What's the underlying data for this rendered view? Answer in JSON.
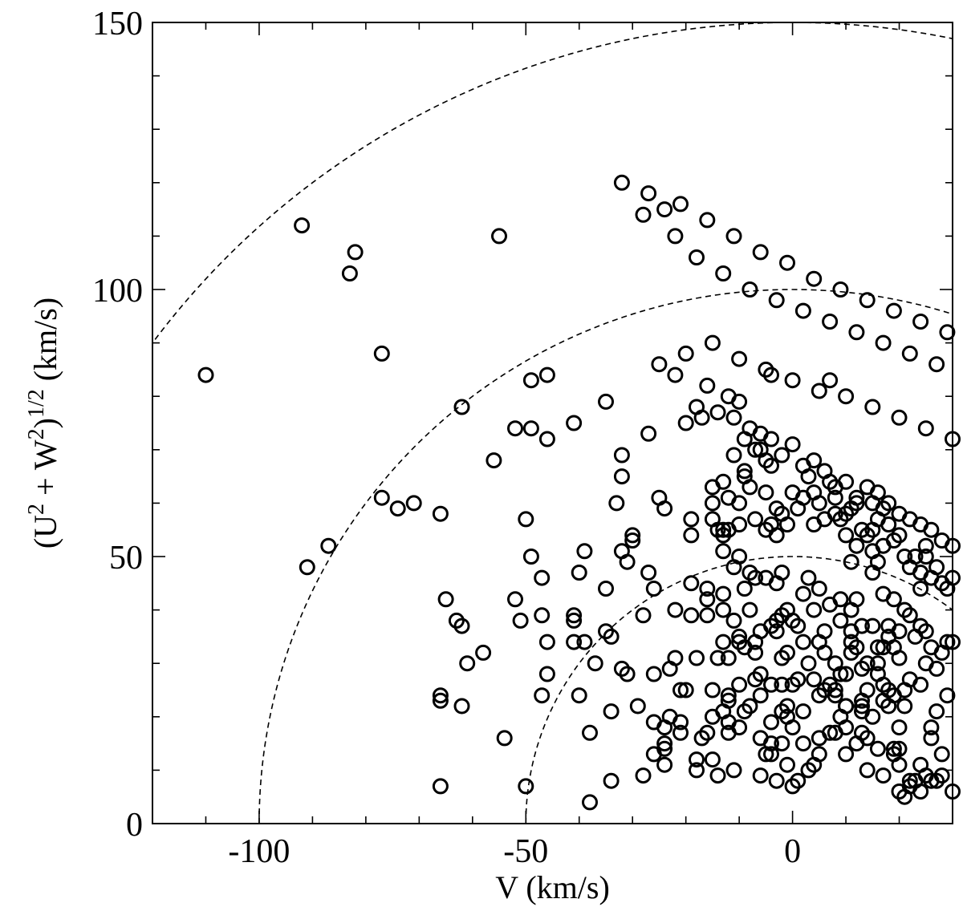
{
  "chart_data": {
    "type": "scatter",
    "xlabel": "V (km/s)",
    "ylabel": {
      "prefix": "(U",
      "sup1": "2",
      "mid": " + W",
      "sup2": "2",
      "close": ")",
      "sup3": "1/2",
      "suffix": " (km/s)"
    },
    "xlim": [
      -120,
      30
    ],
    "ylim": [
      0,
      150
    ],
    "xticks": [
      -100,
      -50,
      0
    ],
    "xtick_labels": [
      "-100",
      "-50",
      "0"
    ],
    "yticks": [
      0,
      50,
      100,
      150
    ],
    "ytick_labels": [
      "0",
      "50",
      "100",
      "150"
    ],
    "grid": false,
    "marker": "open-circle",
    "reference_circles": [
      50,
      100,
      150
    ],
    "points": [
      [
        -110,
        84
      ],
      [
        -92,
        112
      ],
      [
        -91,
        48
      ],
      [
        -87,
        52
      ],
      [
        -83,
        103
      ],
      [
        -82,
        107
      ],
      [
        -77,
        88
      ],
      [
        -77,
        61
      ],
      [
        -74,
        59
      ],
      [
        -71,
        60
      ],
      [
        -66,
        58
      ],
      [
        -66,
        24
      ],
      [
        -66,
        23
      ],
      [
        -66,
        7
      ],
      [
        -65,
        42
      ],
      [
        -63,
        38
      ],
      [
        -62,
        37
      ],
      [
        -62,
        22
      ],
      [
        -61,
        30
      ],
      [
        -62,
        78
      ],
      [
        -58,
        32
      ],
      [
        -56,
        68
      ],
      [
        -55,
        110
      ],
      [
        -54,
        16
      ],
      [
        -52,
        74
      ],
      [
        -52,
        42
      ],
      [
        -51,
        38
      ],
      [
        -50,
        57
      ],
      [
        -50,
        7
      ],
      [
        -49,
        83
      ],
      [
        -49,
        50
      ],
      [
        -49,
        74
      ],
      [
        -47,
        46
      ],
      [
        -47,
        39
      ],
      [
        -46,
        72
      ],
      [
        -46,
        84
      ],
      [
        -46,
        34
      ],
      [
        -46,
        28
      ],
      [
        -47,
        24
      ],
      [
        -41,
        75
      ],
      [
        -41,
        38
      ],
      [
        -41,
        39
      ],
      [
        -41,
        34
      ],
      [
        -40,
        24
      ],
      [
        -40,
        47
      ],
      [
        -39,
        51
      ],
      [
        -39,
        34
      ],
      [
        -38,
        17
      ],
      [
        -38,
        4
      ],
      [
        -37,
        30
      ],
      [
        -35,
        79
      ],
      [
        -35,
        44
      ],
      [
        -35,
        36
      ],
      [
        -34,
        35
      ],
      [
        -34,
        8
      ],
      [
        -34,
        21
      ],
      [
        -33,
        60
      ],
      [
        -32,
        51
      ],
      [
        -32,
        69
      ],
      [
        -32,
        65
      ],
      [
        -32,
        29
      ],
      [
        -31,
        28
      ],
      [
        -31,
        49
      ],
      [
        -30,
        53
      ],
      [
        -30,
        54
      ],
      [
        -29,
        22
      ],
      [
        -28,
        39
      ],
      [
        -28,
        9
      ],
      [
        -27,
        73
      ],
      [
        -27,
        47
      ],
      [
        -26,
        44
      ],
      [
        -26,
        28
      ],
      [
        -26,
        19
      ],
      [
        -26,
        13
      ],
      [
        -25,
        61
      ],
      [
        -24,
        59
      ],
      [
        -24,
        18
      ],
      [
        -23,
        20
      ],
      [
        -24,
        15
      ],
      [
        -24,
        14
      ],
      [
        -24,
        11
      ],
      [
        -23,
        29
      ],
      [
        -22,
        84
      ],
      [
        -22,
        31
      ],
      [
        -22,
        40
      ],
      [
        -21,
        25
      ],
      [
        -21,
        19
      ],
      [
        -21,
        17
      ],
      [
        -20,
        25
      ],
      [
        -19,
        57
      ],
      [
        -19,
        54
      ],
      [
        -19,
        45
      ],
      [
        -19,
        39
      ],
      [
        -18,
        31
      ],
      [
        -18,
        10
      ],
      [
        -18,
        12
      ],
      [
        -17,
        16
      ],
      [
        -16,
        17
      ],
      [
        -16,
        44
      ],
      [
        -16,
        42
      ],
      [
        -15,
        25
      ],
      [
        -15,
        20
      ],
      [
        -15,
        12
      ],
      [
        -14,
        9
      ],
      [
        -13,
        54
      ],
      [
        -13,
        55
      ],
      [
        -13,
        51
      ],
      [
        -13,
        43
      ],
      [
        -13,
        21
      ],
      [
        -12,
        19
      ],
      [
        -12,
        17
      ],
      [
        -11,
        76
      ],
      [
        -11,
        10
      ],
      [
        -10,
        50
      ],
      [
        -11,
        48
      ],
      [
        -10,
        35
      ],
      [
        -10,
        34
      ],
      [
        -10,
        56
      ],
      [
        -9,
        72
      ],
      [
        -9,
        66
      ],
      [
        -9,
        33
      ],
      [
        -9,
        21
      ],
      [
        -8,
        47
      ],
      [
        -7,
        57
      ],
      [
        -7,
        46
      ],
      [
        -7,
        34
      ],
      [
        -7,
        32
      ],
      [
        -6,
        24
      ],
      [
        -6,
        16
      ],
      [
        -6,
        9
      ],
      [
        -5,
        62
      ],
      [
        -5,
        55
      ],
      [
        -4,
        37
      ],
      [
        -4,
        19
      ],
      [
        -4,
        15
      ],
      [
        -3,
        36
      ],
      [
        -3,
        54
      ],
      [
        -2,
        21
      ],
      [
        -2,
        47
      ],
      [
        -1,
        11
      ],
      [
        -1,
        32
      ],
      [
        -1,
        20
      ],
      [
        0,
        7
      ],
      [
        -1,
        22
      ],
      [
        -2,
        15
      ],
      [
        -3,
        38
      ],
      [
        -4,
        13
      ],
      [
        -3,
        8
      ],
      [
        1,
        8
      ],
      [
        0,
        26
      ],
      [
        2,
        15
      ],
      [
        2,
        43
      ],
      [
        3,
        46
      ],
      [
        4,
        27
      ],
      [
        4,
        62
      ],
      [
        5,
        13
      ],
      [
        5,
        16
      ],
      [
        5,
        44
      ],
      [
        5,
        24
      ],
      [
        6,
        25
      ],
      [
        7,
        41
      ],
      [
        7,
        83
      ],
      [
        8,
        58
      ],
      [
        8,
        25
      ],
      [
        9,
        42
      ],
      [
        8,
        24
      ],
      [
        9,
        38
      ],
      [
        10,
        58
      ],
      [
        10,
        22
      ],
      [
        10,
        18
      ],
      [
        10,
        13
      ],
      [
        10,
        22
      ],
      [
        11,
        34
      ],
      [
        11,
        32
      ],
      [
        11,
        59
      ],
      [
        12,
        52
      ],
      [
        12,
        42
      ],
      [
        13,
        22
      ],
      [
        13,
        23
      ],
      [
        13,
        21
      ],
      [
        13,
        29
      ],
      [
        14,
        16
      ],
      [
        14,
        10
      ],
      [
        14,
        25
      ],
      [
        15,
        60
      ],
      [
        15,
        51
      ],
      [
        15,
        37
      ],
      [
        16,
        14
      ],
      [
        16,
        28
      ],
      [
        16,
        49
      ],
      [
        16,
        30
      ],
      [
        17,
        52
      ],
      [
        17,
        33
      ],
      [
        17,
        23
      ],
      [
        17,
        9
      ],
      [
        18,
        25
      ],
      [
        18,
        22
      ],
      [
        19,
        13
      ],
      [
        19,
        24
      ],
      [
        19,
        14
      ],
      [
        20,
        36
      ],
      [
        20,
        18
      ],
      [
        20,
        14
      ],
      [
        20,
        11
      ],
      [
        21,
        25
      ],
      [
        21,
        22
      ],
      [
        21,
        5
      ],
      [
        22,
        8
      ],
      [
        22,
        7
      ],
      [
        24,
        11
      ],
      [
        24,
        44
      ],
      [
        25,
        9
      ],
      [
        25,
        36
      ],
      [
        26,
        8
      ],
      [
        27,
        8
      ],
      [
        28,
        9
      ],
      [
        29,
        24
      ],
      [
        29,
        34
      ],
      [
        30,
        6
      ],
      [
        30,
        34
      ],
      [
        33,
        6
      ],
      [
        -15,
        63
      ],
      [
        -15,
        57
      ],
      [
        -12,
        31
      ],
      [
        -12,
        24
      ],
      [
        -10,
        18
      ],
      [
        -8,
        22
      ],
      [
        -6,
        28
      ],
      [
        -5,
        13
      ],
      [
        -4,
        26
      ],
      [
        -2,
        26
      ],
      [
        0,
        18
      ],
      [
        1,
        27
      ],
      [
        2,
        34
      ],
      [
        3,
        10
      ],
      [
        4,
        11
      ],
      [
        6,
        32
      ],
      [
        7,
        17
      ],
      [
        8,
        17
      ],
      [
        9,
        20
      ],
      [
        11,
        36
      ],
      [
        12,
        15
      ],
      [
        13,
        17
      ],
      [
        15,
        20
      ],
      [
        17,
        26
      ],
      [
        18,
        35
      ],
      [
        19,
        42
      ],
      [
        20,
        6
      ],
      [
        22,
        27
      ],
      [
        23,
        8
      ],
      [
        24,
        37
      ],
      [
        26,
        16
      ],
      [
        27,
        21
      ],
      [
        28,
        13
      ],
      [
        -16,
        39
      ],
      [
        -14,
        31
      ],
      [
        -13,
        34
      ],
      [
        -13,
        40
      ],
      [
        -12,
        23
      ],
      [
        -11,
        38
      ],
      [
        -10,
        26
      ],
      [
        -9,
        44
      ],
      [
        -8,
        40
      ],
      [
        -7,
        27
      ],
      [
        -6,
        36
      ],
      [
        -5,
        46
      ],
      [
        -4,
        56
      ],
      [
        -3,
        45
      ],
      [
        -2,
        39
      ],
      [
        -2,
        31
      ],
      [
        -1,
        40
      ],
      [
        0,
        38
      ],
      [
        1,
        37
      ],
      [
        2,
        21
      ],
      [
        3,
        30
      ],
      [
        4,
        40
      ],
      [
        5,
        34
      ],
      [
        6,
        36
      ],
      [
        7,
        26
      ],
      [
        8,
        30
      ],
      [
        9,
        28
      ],
      [
        10,
        28
      ],
      [
        11,
        40
      ],
      [
        12,
        33
      ],
      [
        13,
        37
      ],
      [
        14,
        30
      ],
      [
        15,
        47
      ],
      [
        16,
        33
      ],
      [
        17,
        43
      ],
      [
        18,
        37
      ],
      [
        19,
        33
      ],
      [
        20,
        31
      ],
      [
        21,
        40
      ],
      [
        22,
        39
      ],
      [
        23,
        35
      ],
      [
        24,
        26
      ],
      [
        25,
        30
      ],
      [
        26,
        33
      ],
      [
        27,
        29
      ],
      [
        28,
        32
      ],
      [
        -17,
        76
      ],
      [
        -15,
        60
      ],
      [
        -14,
        55
      ],
      [
        -13,
        64
      ],
      [
        -12,
        61
      ],
      [
        -12,
        55
      ],
      [
        -11,
        69
      ],
      [
        -10,
        60
      ],
      [
        -9,
        65
      ],
      [
        -8,
        63
      ],
      [
        -7,
        70
      ],
      [
        -6,
        73
      ],
      [
        -5,
        68
      ],
      [
        -4,
        67
      ],
      [
        -3,
        59
      ],
      [
        -2,
        58
      ],
      [
        -1,
        56
      ],
      [
        0,
        62
      ],
      [
        1,
        59
      ],
      [
        2,
        61
      ],
      [
        3,
        65
      ],
      [
        4,
        56
      ],
      [
        5,
        60
      ],
      [
        6,
        57
      ],
      [
        7,
        64
      ],
      [
        8,
        61
      ],
      [
        9,
        57
      ],
      [
        10,
        54
      ],
      [
        11,
        49
      ],
      [
        12,
        60
      ],
      [
        13,
        55
      ],
      [
        14,
        54
      ],
      [
        15,
        55
      ],
      [
        16,
        57
      ],
      [
        17,
        59
      ],
      [
        18,
        56
      ],
      [
        19,
        53
      ],
      [
        20,
        54
      ],
      [
        21,
        50
      ],
      [
        22,
        48
      ],
      [
        23,
        50
      ],
      [
        24,
        47
      ],
      [
        25,
        52
      ],
      [
        26,
        46
      ],
      [
        27,
        48
      ],
      [
        28,
        45
      ],
      [
        29,
        44
      ],
      [
        30,
        46
      ],
      [
        -20,
        75
      ],
      [
        -18,
        78
      ],
      [
        -16,
        82
      ],
      [
        -14,
        77
      ],
      [
        -12,
        80
      ],
      [
        -10,
        79
      ],
      [
        -8,
        74
      ],
      [
        -6,
        70
      ],
      [
        -4,
        72
      ],
      [
        -2,
        69
      ],
      [
        0,
        71
      ],
      [
        2,
        67
      ],
      [
        4,
        68
      ],
      [
        6,
        66
      ],
      [
        8,
        63
      ],
      [
        10,
        64
      ],
      [
        12,
        61
      ],
      [
        14,
        63
      ],
      [
        16,
        62
      ],
      [
        18,
        60
      ],
      [
        20,
        58
      ],
      [
        22,
        57
      ],
      [
        24,
        56
      ],
      [
        26,
        55
      ],
      [
        28,
        53
      ],
      [
        30,
        52
      ],
      [
        -25,
        86
      ],
      [
        -20,
        88
      ],
      [
        -15,
        90
      ],
      [
        -10,
        87
      ],
      [
        -5,
        85
      ],
      [
        0,
        83
      ],
      [
        5,
        81
      ],
      [
        10,
        80
      ],
      [
        15,
        78
      ],
      [
        20,
        76
      ],
      [
        25,
        74
      ],
      [
        30,
        72
      ],
      [
        -28,
        114
      ],
      [
        -22,
        110
      ],
      [
        -18,
        106
      ],
      [
        -13,
        103
      ],
      [
        -8,
        100
      ],
      [
        -3,
        98
      ],
      [
        2,
        96
      ],
      [
        7,
        94
      ],
      [
        12,
        92
      ],
      [
        17,
        90
      ],
      [
        22,
        88
      ],
      [
        27,
        86
      ],
      [
        -32,
        120
      ],
      [
        -27,
        118
      ],
      [
        -21,
        116
      ],
      [
        -16,
        113
      ],
      [
        -11,
        110
      ],
      [
        -6,
        107
      ],
      [
        -1,
        105
      ],
      [
        4,
        102
      ],
      [
        9,
        100
      ],
      [
        14,
        98
      ],
      [
        19,
        96
      ],
      [
        24,
        94
      ],
      [
        29,
        92
      ],
      [
        24,
        6
      ],
      [
        25,
        50
      ],
      [
        26,
        18
      ],
      [
        -4,
        84
      ],
      [
        -24,
        115
      ]
    ]
  }
}
